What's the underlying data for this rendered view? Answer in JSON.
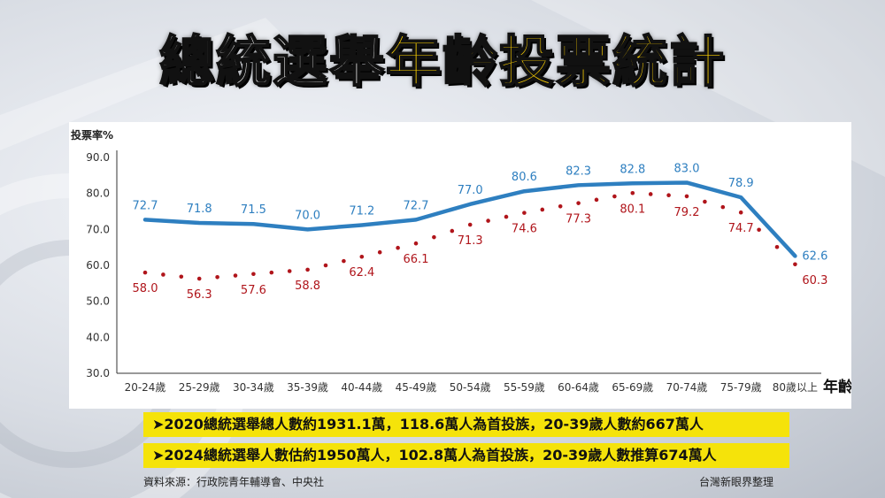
{
  "title": {
    "part1": "總統選舉",
    "part2": "年齡投票統計"
  },
  "chart_data": {
    "type": "line",
    "ylabel": "投票率%",
    "xlabel": "年齡",
    "ylim": [
      30,
      90
    ],
    "yticks": [
      "90.0",
      "80.0",
      "70.0",
      "60.0",
      "50.0",
      "40.0",
      "30.0"
    ],
    "categories": [
      "20-24歲",
      "25-29歲",
      "30-34歲",
      "35-39歲",
      "40-44歲",
      "45-49歲",
      "50-54歲",
      "55-59歲",
      "60-64歲",
      "65-69歲",
      "70-74歲",
      "75-79歲",
      "80歲以上"
    ],
    "series": [
      {
        "values": [
          72.7,
          71.8,
          71.5,
          70.0,
          71.2,
          72.7,
          77.0,
          80.6,
          82.3,
          82.8,
          83.0,
          78.9,
          62.6
        ],
        "labels": [
          "72.7",
          "71.8",
          "71.5",
          "70.0",
          "71.2",
          "72.7",
          "77.0",
          "80.6",
          "82.3",
          "82.8",
          "83.0",
          "78.9",
          "62.6"
        ],
        "color": "#2e7fc0",
        "style": "solid"
      },
      {
        "values": [
          58.0,
          56.3,
          57.6,
          58.8,
          62.4,
          66.1,
          71.3,
          74.6,
          77.3,
          80.1,
          79.2,
          74.7,
          60.3
        ],
        "labels": [
          "58.0",
          "56.3",
          "57.6",
          "58.8",
          "62.4",
          "66.1",
          "71.3",
          "74.6",
          "77.3",
          "80.1",
          "79.2",
          "74.7",
          "60.3"
        ],
        "color": "#b0151b",
        "style": "dotted"
      }
    ]
  },
  "info": {
    "line1": "➤2020總統選舉總人數約1931.1萬，118.6萬人為首投族，20-39歲人數約667萬人",
    "line2": "➤2024總統選舉人數估約1950萬人，102.8萬人為首投族，20-39歲人數推算674萬人"
  },
  "footer": {
    "source": "資料來源：行政院青年輔導會、中央社",
    "credit": "台灣新眼界整理"
  },
  "colors": {
    "accent": "#ffd200",
    "info_bg": "#f5e30a",
    "blue_line": "#2e7fc0",
    "red_dots": "#b0151b"
  }
}
